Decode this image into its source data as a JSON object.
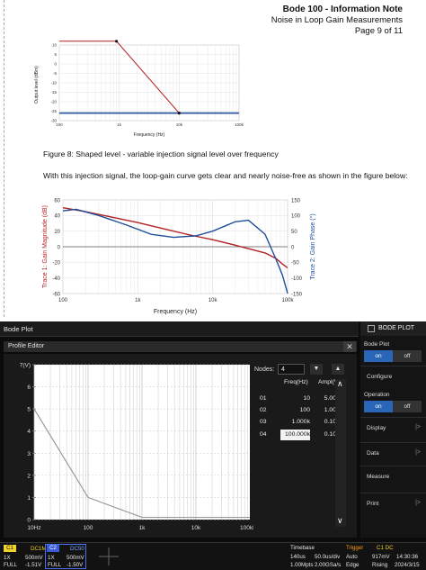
{
  "header": {
    "title": "Bode 100 - Information Note",
    "subtitle": "Noise in Loop Gain Measurements",
    "page": "Page 9 of 11"
  },
  "figure8": {
    "ylabel": "Output level (dBm)",
    "xlabel": "Frequency (Hz)",
    "yticks": [
      "10",
      "5",
      "0",
      "-5",
      "-10",
      "-15",
      "-20",
      "-25",
      "-30"
    ],
    "xticks": [
      "100",
      "1k",
      "10k",
      "100k"
    ],
    "caption": "Figure 8: Shaped level - variable injection signal level over frequency"
  },
  "paragraph": "With this injection signal, the loop-gain curve gets clear and nearly noise-free as shown in the figure below:",
  "figure9": {
    "ylabel_left": "Trace 1: Gain Magnitude (dB)",
    "ylabel_right": "Trace 2: Gain Phase (°)",
    "xlabel": "Frequency (Hz)",
    "yticks_left": [
      "60",
      "40",
      "20",
      "0",
      "-20",
      "-40",
      "-60"
    ],
    "yticks_right": [
      "150",
      "100",
      "50",
      "0",
      "-50",
      "-100",
      "-150"
    ],
    "xticks": [
      "100",
      "1k",
      "10k",
      "100k"
    ]
  },
  "chart_data": [
    {
      "type": "line",
      "xlabel": "Frequency (Hz)",
      "ylabel": "Output level (dBm)",
      "x_scale": "log",
      "xlim": [
        100,
        100000
      ],
      "ylim": [
        -30,
        10
      ],
      "series": [
        {
          "x": [
            100,
            900,
            10000,
            100000
          ],
          "values": [
            12,
            12,
            -26,
            -26
          ],
          "color": "#b22222"
        },
        {
          "x": [
            100,
            100000
          ],
          "values": [
            -26,
            -26
          ],
          "color": "#1f4e9a"
        }
      ]
    },
    {
      "type": "line",
      "xlabel": "Frequency (Hz)",
      "ylabel": "Trace 1: Gain Magnitude (dB)",
      "y2label": "Trace 2: Gain Phase (°)",
      "x_scale": "log",
      "xlim": [
        100,
        100000
      ],
      "ylim": [
        -60,
        60
      ],
      "y2lim": [
        -150,
        150
      ],
      "series": [
        {
          "axis": "left",
          "color": "#b22222",
          "x": [
            100,
            200,
            500,
            1000,
            2000,
            5000,
            10000,
            20000,
            50000,
            70000,
            85000,
            100000
          ],
          "values": [
            50,
            45,
            37,
            31,
            24,
            15,
            9,
            2,
            -8,
            -15,
            -22,
            -27
          ]
        },
        {
          "axis": "right",
          "color": "#1f4e9a",
          "x": [
            100,
            150,
            300,
            700,
            1500,
            3000,
            6000,
            10000,
            20000,
            30000,
            50000,
            70000,
            85000,
            95000,
            100000
          ],
          "values": [
            115,
            120,
            100,
            70,
            40,
            30,
            35,
            50,
            80,
            85,
            40,
            -40,
            -90,
            -130,
            -150
          ]
        }
      ]
    },
    {
      "type": "line",
      "xlabel": "",
      "ylabel": "7(V)",
      "x_scale": "log",
      "xlim": [
        10,
        100000
      ],
      "ylim": [
        0,
        7
      ],
      "yticks": [
        "7(V)",
        "6",
        "5",
        "4",
        "3",
        "2",
        "1",
        "0"
      ],
      "xticks": [
        "10Hz",
        "100",
        "1k",
        "10k",
        "100kHz"
      ],
      "series": [
        {
          "x": [
            10,
            100,
            1000,
            100000
          ],
          "values": [
            5,
            1,
            0.1,
            0.1
          ],
          "color": "#d8d8d8"
        }
      ]
    }
  ],
  "scope": {
    "window_title": "Bode Plot",
    "profile_editor": "Profile Editor",
    "close_label": "✕",
    "nodes_label": "Nodes:",
    "nodes_value": "4",
    "table": {
      "headers": [
        "Freq(Hz)",
        "Ampl(V)"
      ],
      "rows": [
        {
          "n": "01",
          "freq": "10",
          "ampl": "5.00"
        },
        {
          "n": "02",
          "freq": "100",
          "ampl": "1.00"
        },
        {
          "n": "03",
          "freq": "1.000k",
          "ampl": "0.10"
        },
        {
          "n": "04",
          "freq": "100.000k",
          "ampl": "0.10"
        }
      ]
    },
    "panel": {
      "title": "BODE PLOT",
      "bode_plot_label": "Bode Plot",
      "on": "on",
      "off": "off",
      "configure": "Configure",
      "operation_label": "Operation",
      "op_on": "on",
      "op_off": "off",
      "display": "Display",
      "data": "Data",
      "measure": "Measure",
      "print": "Print",
      "arrow": "|>"
    },
    "status": {
      "c1": "C1",
      "c1_coupling": "DC1M",
      "c1_probe": "1X",
      "c1_scale": "500mV",
      "c1_bw": "FULL",
      "c1_offset": "-1.51V",
      "c2": "C2",
      "c2_coupling": "DC50",
      "c2_probe": "1X",
      "c2_scale": "500mV",
      "c2_bw": "FULL",
      "c2_offset": "-1.50V",
      "timebase_label": "Timebase",
      "timebase_a": "140us",
      "timebase_b": "50.0us/div",
      "timebase_c": "1.00Mpts",
      "timebase_d": "2.00GSa/s",
      "trigger_label": "Trigger",
      "trigger_src": "C1 DC",
      "trigger_mode": "Auto",
      "trigger_level": "917mV",
      "trigger_type": "Edge",
      "trigger_slope": "Rising",
      "time": "14:30:36",
      "date": "2024/3/15"
    }
  }
}
